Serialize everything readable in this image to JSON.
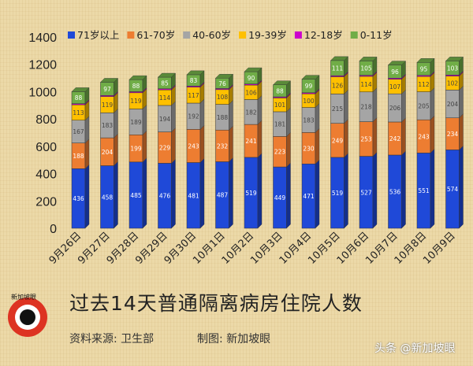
{
  "chart_data": {
    "type": "bar",
    "stacked": true,
    "title": "过去14天普通隔离病房住院人数",
    "xlabel": "",
    "ylabel": "",
    "ylim": [
      0,
      1400
    ],
    "yticks": [
      0,
      200,
      400,
      600,
      800,
      1000,
      1200,
      1400
    ],
    "grid": false,
    "legend_position": "top",
    "categories": [
      "9月26日",
      "9月27日",
      "9月28日",
      "9月29日",
      "9月30日",
      "10月1日",
      "10月2日",
      "10月3日",
      "10月4日",
      "10月5日",
      "10月6日",
      "10月7日",
      "10月8日",
      "10月9日"
    ],
    "series": [
      {
        "name": "71岁以上",
        "color": "#1f49d8",
        "text": "#ffffff",
        "values": [
          436,
          458,
          485,
          476,
          481,
          487,
          519,
          449,
          471,
          519,
          527,
          536,
          551,
          574
        ]
      },
      {
        "name": "61-70岁",
        "color": "#ed7d31",
        "text": "#ffffff",
        "values": [
          188,
          204,
          199,
          229,
          243,
          232,
          241,
          223,
          230,
          249,
          253,
          242,
          243,
          234
        ]
      },
      {
        "name": "40-60岁",
        "color": "#a5a5a5",
        "text": "#444444",
        "values": [
          167,
          183,
          189,
          194,
          192,
          188,
          182,
          181,
          183,
          215,
          218,
          206,
          205,
          204
        ]
      },
      {
        "name": "19-39岁",
        "color": "#ffc000",
        "text": "#444444",
        "values": [
          113,
          119,
          119,
          114,
          117,
          108,
          106,
          101,
          100,
          126,
          114,
          107,
          112,
          102
        ]
      },
      {
        "name": "12-18岁",
        "color": "#cc00cc",
        "text": "#444444",
        "values": [
          8,
          8,
          8,
          8,
          8,
          8,
          8,
          8,
          8,
          8,
          8,
          8,
          8,
          8
        ]
      },
      {
        "name": "0-11岁",
        "color": "#70ad47",
        "text": "#ffffff",
        "values": [
          88,
          97,
          88,
          85,
          83,
          76,
          90,
          88,
          99,
          111,
          105,
          96,
          95,
          103
        ]
      }
    ],
    "show_labels": [
      true,
      true,
      true,
      true,
      false,
      true
    ]
  },
  "footer": {
    "title": "过去14天普通隔离病房住院人数",
    "source": "资料来源:  卫生部",
    "maker": "制图:  新加坡眼",
    "watermark": "头条 @新加坡眼",
    "logo_text": "新加坡眼"
  }
}
